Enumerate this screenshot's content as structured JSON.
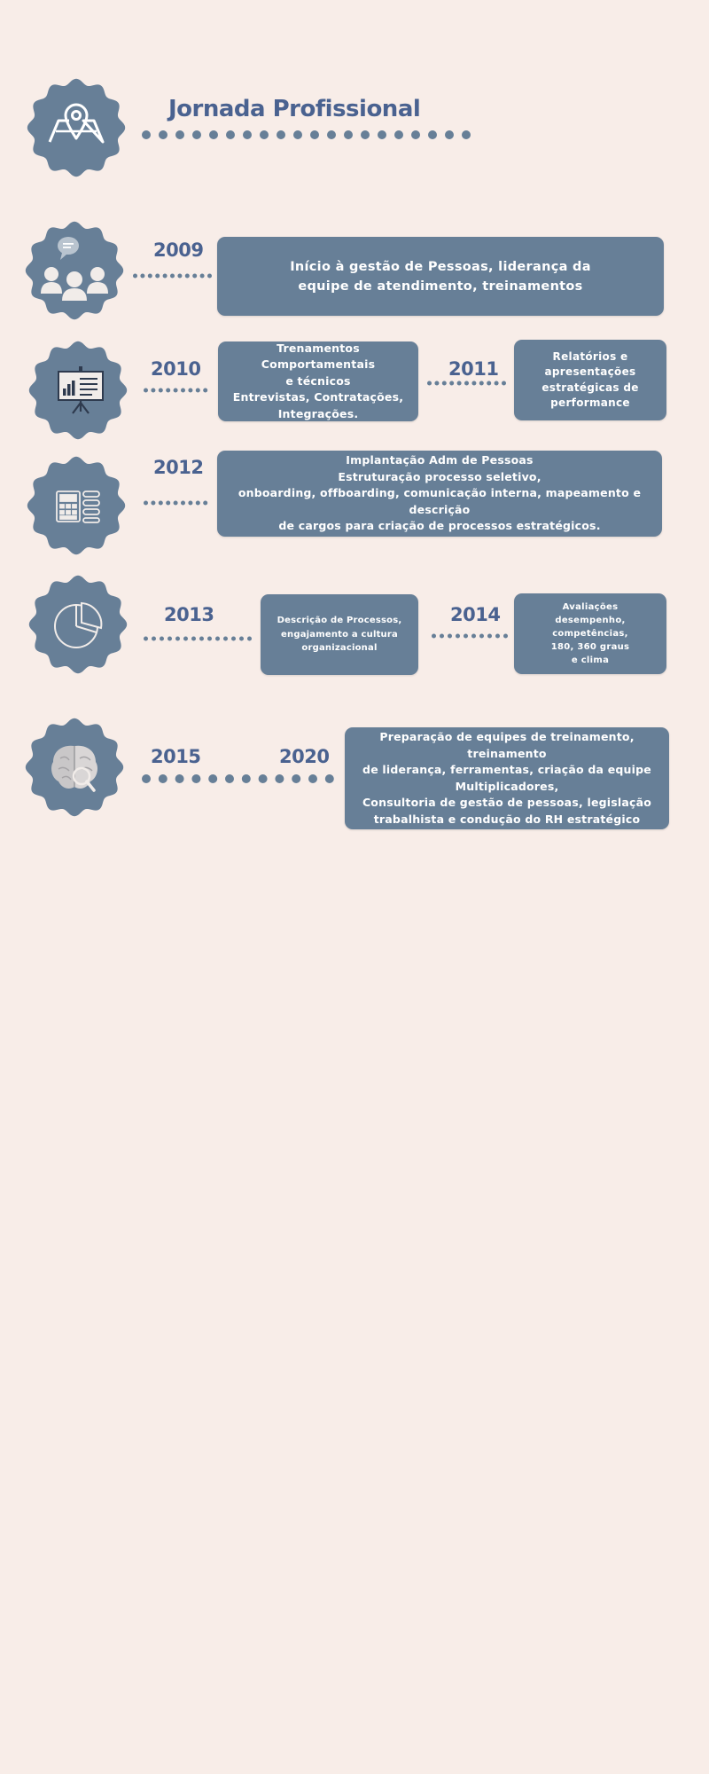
{
  "page": {
    "title": "Jornada Profissional"
  },
  "colors": {
    "background": "#f8ede8",
    "card": "#677f97",
    "accent": "#4a6290",
    "badge": "#677f97",
    "icon": "#ffffff"
  },
  "icons": [
    "map-pin-icon",
    "people-chat-icon",
    "presentation-board-icon",
    "calculator-list-icon",
    "pie-chart-icon",
    "brain-search-icon"
  ],
  "timeline": {
    "y2009": {
      "year": "2009",
      "text": "Início à gestão de Pessoas, liderança da\nequipe de atendimento, treinamentos"
    },
    "y2010": {
      "year": "2010",
      "text": "Trenamentos Comportamentais\ne técnicos\nEntrevistas, Contratações,\nIntegrações."
    },
    "y2011": {
      "year": "2011",
      "text": "Relatórios e\napresentações\nestratégicas de\nperformance"
    },
    "y2012": {
      "year": "2012",
      "text": "Implantação Adm de Pessoas\nEstruturação processo seletivo,\nonboarding, offboarding, comunicação interna, mapeamento e descrição\nde cargos para criação de processos estratégicos."
    },
    "y2013": {
      "year": "2013",
      "text": "Descrição de Processos,\nengajamento a cultura\norganizacional"
    },
    "y2014": {
      "year": "2014",
      "text": "Avaliações\ndesempenho,\ncompetências,\n180, 360 graus\ne clima"
    },
    "y2015": {
      "year": "2015"
    },
    "y2020": {
      "year": "2020",
      "text": "Preparação de equipes de treinamento, treinamento\nde liderança, ferramentas, criação da equipe\nMultiplicadores,\nConsultoria de gestão de pessoas, legislação\ntrabalhista e condução do RH estratégico"
    }
  }
}
